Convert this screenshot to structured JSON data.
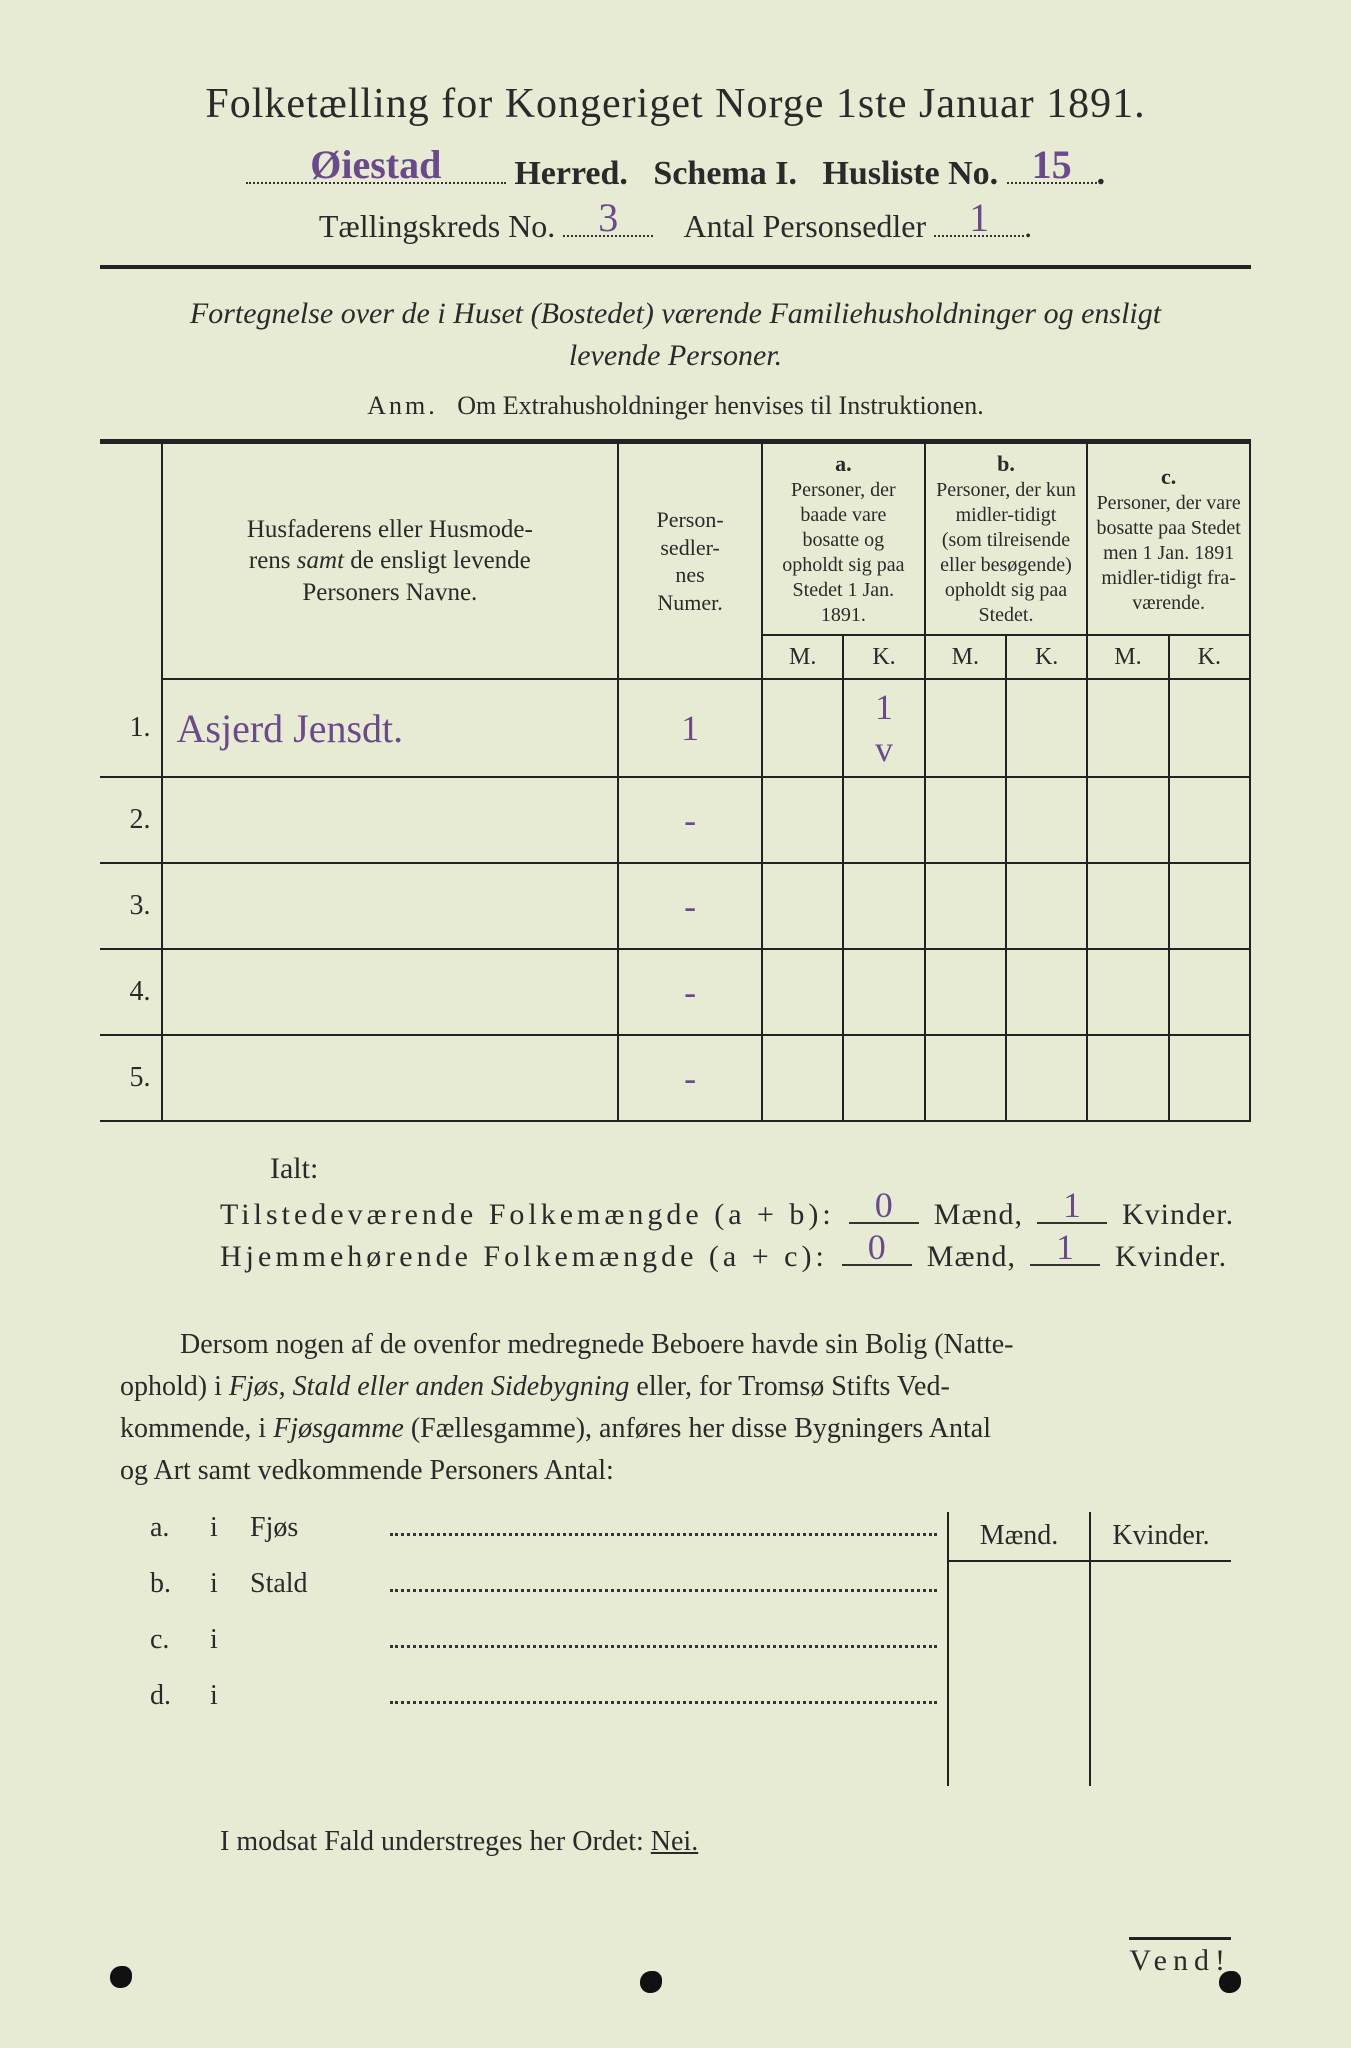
{
  "colors": {
    "paper": "#e8ebd4",
    "ink": "#2a2a2a",
    "handwriting": "#6a4a8a"
  },
  "header": {
    "title": "Folketælling for Kongeriget Norge 1ste Januar 1891.",
    "herred_hw": "Øiestad",
    "herred_label": "Herred.",
    "schema_label": "Schema I.",
    "husliste_label": "Husliste No.",
    "husliste_hw": "15",
    "kreds_label": "Tællingskreds No.",
    "kreds_hw": "3",
    "antal_label": "Antal Personsedler",
    "antal_hw": "1"
  },
  "subtitle": "Fortegnelse over de i Huset (Bostedet) værende Familiehusholdninger og ensligt levende Personer.",
  "anm_label": "Anm.",
  "anm_text": "Om Extrahusholdninger henvises til Instruktionen.",
  "table": {
    "col_names": "Husfaderens eller Husmoderens samt de ensligt levende Personers Navne.",
    "col_person": "Person-\nsedler-\nnes\nNumer.",
    "col_a_letter": "a.",
    "col_a": "Personer, der baade vare bosatte og opholdt sig paa Stedet 1 Jan. 1891.",
    "col_b_letter": "b.",
    "col_b": "Personer, der kun midler-tidigt (som tilreisende eller besøgende) opholdt sig paa Stedet.",
    "col_c_letter": "c.",
    "col_c": "Personer, der vare bosatte paa Stedet men 1 Jan. 1891 midler-tidigt fra-værende.",
    "mk_m": "M.",
    "mk_k": "K.",
    "rows": [
      {
        "n": "1.",
        "name": "Asjerd Jensdt.",
        "pnum": "1",
        "aM": "",
        "aK": "1",
        "aK2": "v",
        "bM": "",
        "bK": "",
        "cM": "",
        "cK": ""
      },
      {
        "n": "2.",
        "name": "",
        "pnum": "",
        "aM": "",
        "aK": "",
        "bM": "",
        "bK": "",
        "cM": "",
        "cK": ""
      },
      {
        "n": "3.",
        "name": "",
        "pnum": "",
        "aM": "",
        "aK": "",
        "bM": "",
        "bK": "",
        "cM": "",
        "cK": ""
      },
      {
        "n": "4.",
        "name": "",
        "pnum": "",
        "aM": "",
        "aK": "",
        "bM": "",
        "bK": "",
        "cM": "",
        "cK": ""
      },
      {
        "n": "5.",
        "name": "",
        "pnum": "",
        "aM": "",
        "aK": "",
        "bM": "",
        "bK": "",
        "cM": "",
        "cK": ""
      }
    ]
  },
  "totals": {
    "ialt": "Ialt:",
    "line1_label": "Tilstedeværende Folkemængde (a + b):",
    "line2_label": "Hjemmehørende Folkemængde (a + c):",
    "maend": "Mænd,",
    "kvinder": "Kvinder.",
    "l1_m": "0",
    "l1_k": "1",
    "l2_m": "0",
    "l2_k": "1"
  },
  "para": "Dersom nogen af de ovenfor medregnede Beboere havde sin Bolig (Natteophold) i Fjøs, Stald eller anden Sidebygning eller, for Tromsø Stifts Vedkommende, i Fjøsgamme (Fællesgamme), anføres her disse Bygningers Antal og Art samt vedkommende Personers Antal:",
  "side": {
    "hdr_m": "Mænd.",
    "hdr_k": "Kvinder.",
    "rows": [
      {
        "a": "a.",
        "i": "i",
        "label": "Fjøs"
      },
      {
        "a": "b.",
        "i": "i",
        "label": "Stald"
      },
      {
        "a": "c.",
        "i": "i",
        "label": ""
      },
      {
        "a": "d.",
        "i": "i",
        "label": ""
      }
    ]
  },
  "modsat": "I modsat Fald understreges her Ordet:",
  "nei": "Nei.",
  "vend": "Vend!"
}
